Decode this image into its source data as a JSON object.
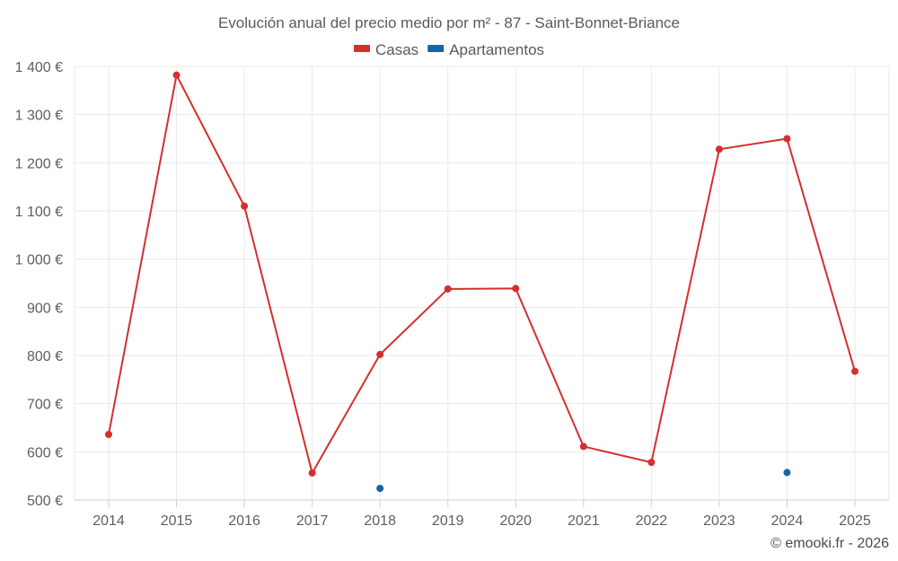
{
  "chart_data": {
    "type": "line",
    "title": "Evolución anual del precio medio por m² - 87 - Saint-Bonnet-Briance",
    "categories": [
      "2014",
      "2015",
      "2016",
      "2017",
      "2018",
      "2019",
      "2020",
      "2021",
      "2022",
      "2023",
      "2024",
      "2025"
    ],
    "series": [
      {
        "name": "Casas",
        "color": "#d32f2f",
        "values": [
          636,
          1382,
          1110,
          556,
          802,
          938,
          939,
          611,
          578,
          1228,
          1250,
          767
        ]
      },
      {
        "name": "Apartamentos",
        "color": "#1565a6",
        "values": [
          null,
          null,
          null,
          null,
          524,
          null,
          null,
          null,
          null,
          null,
          557,
          null
        ]
      }
    ],
    "ylim": [
      500,
      1400
    ],
    "yticks": [
      500,
      600,
      700,
      800,
      900,
      1000,
      1100,
      1200,
      1300,
      1400
    ],
    "ytick_labels": [
      "500 €",
      "600 €",
      "700 €",
      "800 €",
      "900 €",
      "1 000 €",
      "1 100 €",
      "1 200 €",
      "1 300 €",
      "1 400 €"
    ],
    "xlabel": "",
    "ylabel": "",
    "grid": true,
    "legend_position": "top-center"
  },
  "credit": "© emooki.fr - 2026"
}
